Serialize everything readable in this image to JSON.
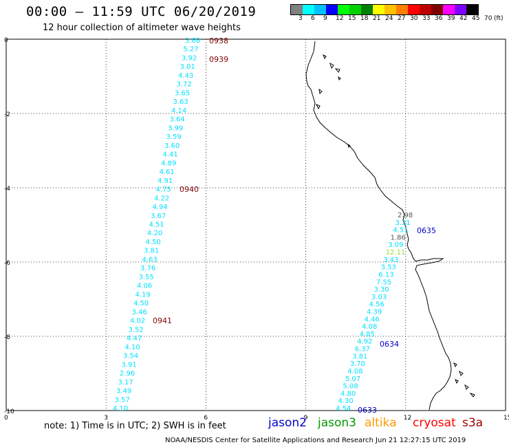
{
  "title": "00:00 – 11:59 UTC 06/20/2019",
  "subtitle": "12 hour collection of altimeter wave heights",
  "colorbar": {
    "colors": [
      "#808080",
      "#00ffff",
      "#00c0ff",
      "#0000ff",
      "#00ff00",
      "#00d000",
      "#008000",
      "#ffff00",
      "#ffc000",
      "#ff8000",
      "#ff0000",
      "#c00000",
      "#800000",
      "#ff00ff",
      "#8000ff",
      "#000000"
    ],
    "labels": [
      "3",
      "6",
      "9",
      "12",
      "15",
      "18",
      "21",
      "24",
      "27",
      "30",
      "33",
      "36",
      "39",
      "42",
      "45",
      "70"
    ],
    "unit": "(ft)"
  },
  "axes": {
    "x_ticks": [
      "0",
      "3",
      "6",
      "9",
      "12",
      "15"
    ],
    "y_ticks": [
      "0",
      "-2",
      "-4",
      "-6",
      "-8",
      "-10"
    ]
  },
  "tracks": [
    {
      "name": "left-track",
      "color": "#00e0ff",
      "values": [
        "3.68",
        "5.27",
        "3.92",
        "3.01",
        "4.43",
        "3.72",
        "3.65",
        "3.63",
        "4.14",
        "3.64",
        "3.99",
        "3.59",
        "3.60",
        "4.41",
        "4.89",
        "4.61",
        "4.91",
        "4.75",
        "4.22",
        "4.94",
        "3.67",
        "4.51",
        "4.20",
        "4.50",
        "3.81",
        "4.63",
        "3.76",
        "3.55",
        "4.06",
        "4.19",
        "4.50",
        "3.46",
        "4.02",
        "3.52",
        "4.47",
        "4.10",
        "3.54",
        "3.91",
        "2.96",
        "3.17",
        "3.49",
        "3.57",
        "4.10"
      ],
      "time_labels": [
        "0938",
        "0939",
        "0940",
        "0941"
      ]
    },
    {
      "name": "right-track",
      "values": [
        "2.98",
        "3.21",
        "4.51",
        "1.86",
        "3.09",
        "12.11",
        "3.43",
        "3.53",
        "6.13",
        "7.55",
        "3.30",
        "3.03",
        "4.56",
        "4.39",
        "4.46",
        "4.08",
        "4.85",
        "4.92",
        "6.37",
        "3.81",
        "3.70",
        "4.08",
        "5.07",
        "5.08",
        "4.80",
        "4.30",
        "4.54"
      ],
      "time_labels": [
        "0635",
        "0634",
        "0633"
      ]
    }
  ],
  "note": "note:  1) Time is in UTC;  2) SWH is in feet",
  "legend": [
    {
      "label": "jason2",
      "color": "#0000cc"
    },
    {
      "label": "jason3",
      "color": "#009900"
    },
    {
      "label": "altika",
      "color": "#ff9900"
    },
    {
      "label": "cryosat",
      "color": "#ff0000"
    },
    {
      "label": "s3a",
      "color": "#990000"
    }
  ],
  "footer": "NOAA/NESDIS Center for Satellite Applications and Research    Jun 21 12:27:15 UTC 2019"
}
